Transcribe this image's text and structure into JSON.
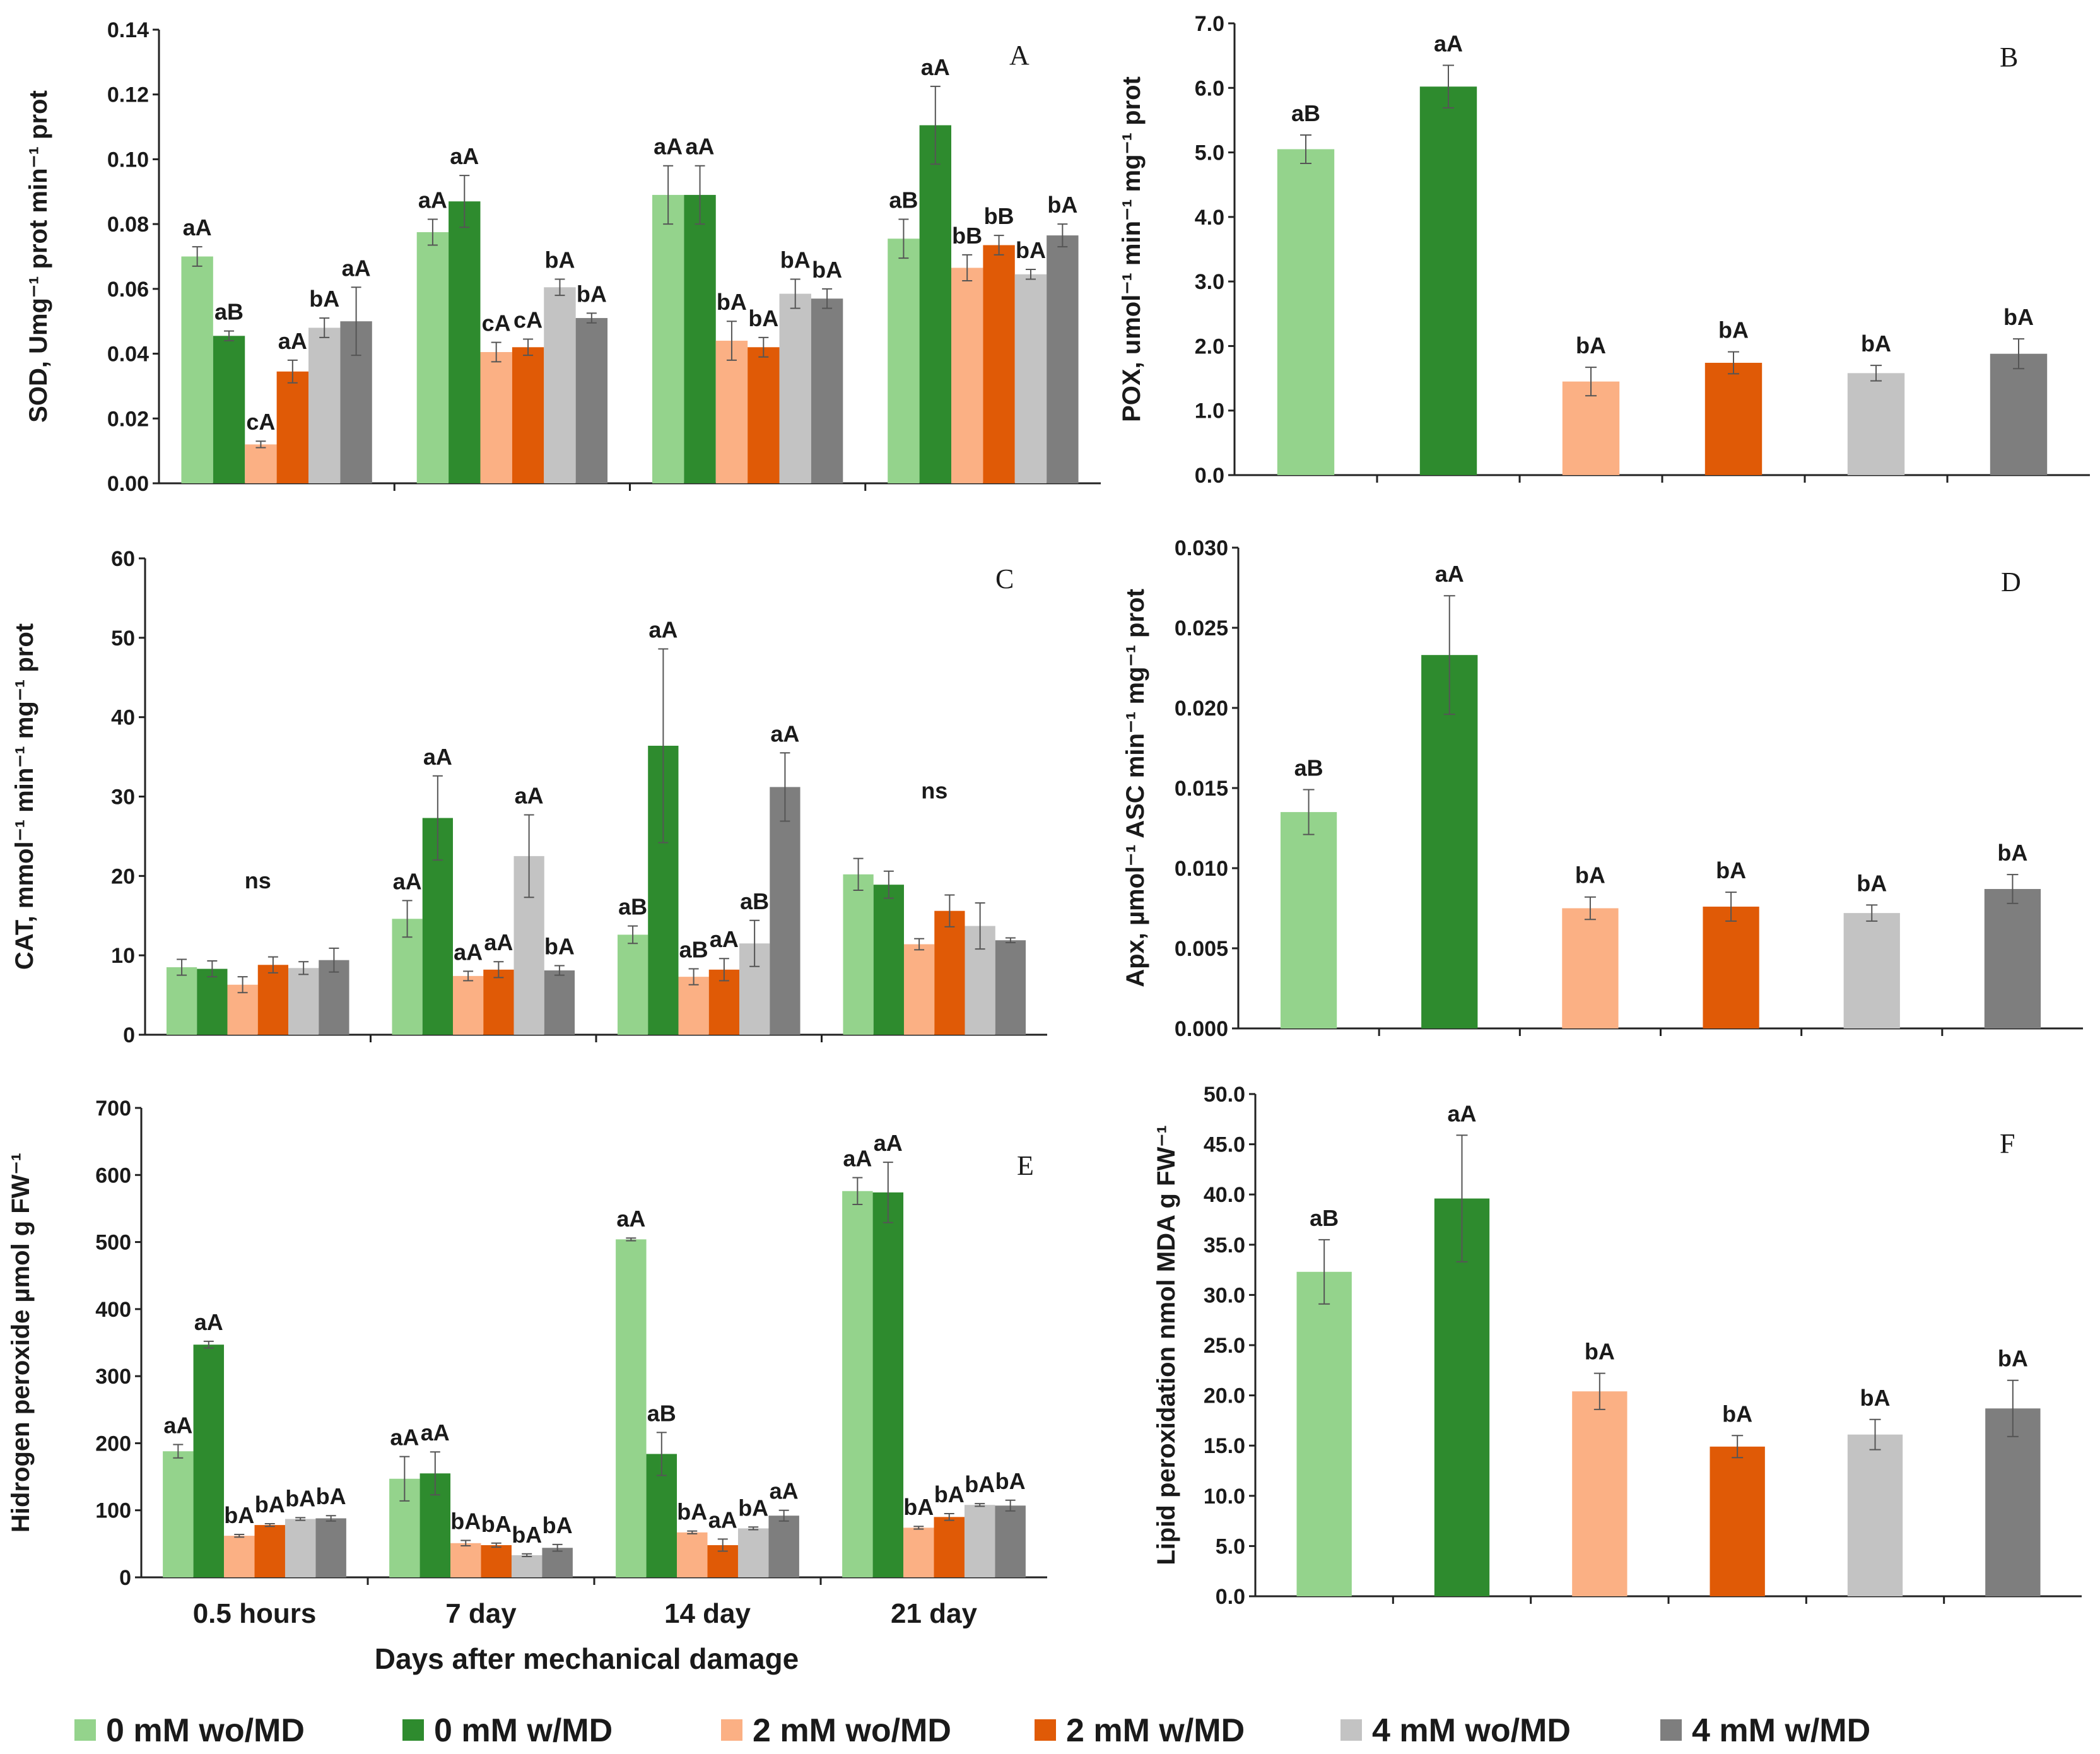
{
  "x_axis_title": "Days after mechanical damage",
  "legend": [
    {
      "label": "0 mM wo/MD",
      "color": "#94d38c"
    },
    {
      "label": "0 mM w/MD",
      "color": "#2e8b2e"
    },
    {
      "label": "2 mM wo/MD",
      "color": "#fbb084"
    },
    {
      "label": "2 mM w/MD",
      "color": "#e05a06"
    },
    {
      "label": "4 mM wo/MD",
      "color": "#c3c3c3"
    },
    {
      "label": "4 mM w/MD",
      "color": "#7e7e7e"
    }
  ],
  "chart_data": [
    {
      "panel": "A",
      "type": "bar",
      "ylabel": "SOD, Umg⁻¹ prot min⁻¹ prot",
      "ylim": [
        0,
        0.14
      ],
      "yticks": [
        "0.00",
        "0.02",
        "0.04",
        "0.06",
        "0.08",
        "0.10",
        "0.12",
        "0.14"
      ],
      "categories": [
        "0.5 hours",
        "7 day",
        "14 day",
        "21 day"
      ],
      "series": [
        {
          "name": "0 mM wo/MD",
          "values": [
            0.07,
            0.0775,
            0.089,
            0.0755
          ],
          "errors": [
            0.003,
            0.004,
            0.009,
            0.006
          ],
          "labels": [
            "aA",
            "aA",
            "aA",
            "aB"
          ]
        },
        {
          "name": "0 mM w/MD",
          "values": [
            0.0455,
            0.087,
            0.089,
            0.1105
          ],
          "errors": [
            0.0015,
            0.008,
            0.009,
            0.012
          ],
          "labels": [
            "aB",
            "aA",
            "aA",
            "aA"
          ]
        },
        {
          "name": "2 mM wo/MD",
          "values": [
            0.012,
            0.0405,
            0.044,
            0.0665
          ],
          "errors": [
            0.001,
            0.003,
            0.006,
            0.004
          ],
          "labels": [
            "cA",
            "cA",
            "bA",
            "bB"
          ]
        },
        {
          "name": "2 mM w/MD",
          "values": [
            0.0345,
            0.042,
            0.042,
            0.0735
          ],
          "errors": [
            0.0035,
            0.0025,
            0.003,
            0.003
          ],
          "labels": [
            "aA",
            "cA",
            "bA",
            "bB"
          ]
        },
        {
          "name": "4 mM wo/MD",
          "values": [
            0.048,
            0.0605,
            0.0585,
            0.0645
          ],
          "errors": [
            0.003,
            0.0025,
            0.0045,
            0.0015
          ],
          "labels": [
            "bA",
            "bA",
            "bA",
            "bA"
          ]
        },
        {
          "name": "4 mM w/MD",
          "values": [
            0.05,
            0.051,
            0.057,
            0.0765
          ],
          "errors": [
            0.0105,
            0.0015,
            0.003,
            0.0035
          ],
          "labels": [
            "aA",
            "bA",
            "bA",
            "bA"
          ]
        }
      ]
    },
    {
      "panel": "B",
      "type": "bar",
      "ylabel": "POX, umol⁻¹ min⁻¹ mg⁻¹ prot",
      "ylim": [
        0,
        7
      ],
      "yticks": [
        "0.0",
        "1.0",
        "2.0",
        "3.0",
        "4.0",
        "5.0",
        "6.0",
        "7.0"
      ],
      "series": [
        {
          "name": "0 mM wo/MD",
          "value": 5.05,
          "error": 0.22,
          "label": "aB"
        },
        {
          "name": "0 mM w/MD",
          "value": 6.02,
          "error": 0.33,
          "label": "aA"
        },
        {
          "name": "2 mM wo/MD",
          "value": 1.45,
          "error": 0.22,
          "label": "bA"
        },
        {
          "name": "2 mM w/MD",
          "value": 1.74,
          "error": 0.17,
          "label": "bA"
        },
        {
          "name": "4 mM wo/MD",
          "value": 1.58,
          "error": 0.12,
          "label": "bA"
        },
        {
          "name": "4 mM w/MD",
          "value": 1.88,
          "error": 0.23,
          "label": "bA"
        }
      ]
    },
    {
      "panel": "C",
      "type": "bar",
      "ylabel": "CAT, mmol⁻¹ min⁻¹ mg⁻¹ prot",
      "ylim": [
        0,
        60
      ],
      "yticks": [
        "0",
        "10",
        "20",
        "30",
        "40",
        "50",
        "60"
      ],
      "categories": [
        "0.5 hours",
        "7 day",
        "14 day",
        "21 day"
      ],
      "group_labels": [
        "ns",
        "",
        "",
        "ns"
      ],
      "series": [
        {
          "name": "0 mM wo/MD",
          "values": [
            8.5,
            14.6,
            12.6,
            20.2
          ],
          "errors": [
            1.0,
            2.3,
            1.1,
            2.0
          ],
          "labels": [
            "",
            "aA",
            "aB",
            ""
          ]
        },
        {
          "name": "0 mM w/MD",
          "values": [
            8.3,
            27.3,
            36.4,
            18.9
          ],
          "errors": [
            1.0,
            5.3,
            12.2,
            1.7
          ],
          "labels": [
            "",
            "aA",
            "aA",
            ""
          ]
        },
        {
          "name": "2 mM wo/MD",
          "values": [
            6.3,
            7.4,
            7.3,
            11.4
          ],
          "errors": [
            1.0,
            0.6,
            1.0,
            0.7
          ],
          "labels": [
            "",
            "aA",
            "aB",
            ""
          ]
        },
        {
          "name": "2 mM w/MD",
          "values": [
            8.8,
            8.2,
            8.2,
            15.6
          ],
          "errors": [
            1.0,
            1.0,
            1.4,
            2.0
          ],
          "labels": [
            "",
            "aA",
            "aA",
            ""
          ]
        },
        {
          "name": "4 mM wo/MD",
          "values": [
            8.4,
            22.5,
            11.5,
            13.7
          ],
          "errors": [
            0.8,
            5.2,
            2.9,
            2.9
          ],
          "labels": [
            "",
            "aA",
            "aB",
            ""
          ]
        },
        {
          "name": "4 mM w/MD",
          "values": [
            9.4,
            8.1,
            31.2,
            11.9
          ],
          "errors": [
            1.5,
            0.6,
            4.3,
            0.3
          ],
          "labels": [
            "",
            "bA",
            "aA",
            ""
          ]
        }
      ]
    },
    {
      "panel": "D",
      "type": "bar",
      "ylabel": "Apx, µmol⁻¹ ASC min⁻¹ mg⁻¹ prot",
      "ylim": [
        0,
        0.03
      ],
      "yticks": [
        "0.000",
        "0.005",
        "0.010",
        "0.015",
        "0.020",
        "0.025",
        "0.030"
      ],
      "series": [
        {
          "name": "0 mM wo/MD",
          "value": 0.0135,
          "error": 0.0014,
          "label": "aB"
        },
        {
          "name": "0 mM w/MD",
          "value": 0.0233,
          "error": 0.0037,
          "label": "aA"
        },
        {
          "name": "2 mM wo/MD",
          "value": 0.0075,
          "error": 0.0007,
          "label": "bA"
        },
        {
          "name": "2 mM w/MD",
          "value": 0.0076,
          "error": 0.0009,
          "label": "bA"
        },
        {
          "name": "4 mM wo/MD",
          "value": 0.0072,
          "error": 0.0005,
          "label": "bA"
        },
        {
          "name": "4 mM w/MD",
          "value": 0.0087,
          "error": 0.0009,
          "label": "bA"
        }
      ]
    },
    {
      "panel": "E",
      "type": "bar",
      "ylabel": "Hidrogen peroxide µmol g FW⁻¹",
      "ylim": [
        0,
        700
      ],
      "yticks": [
        "0",
        "100",
        "200",
        "300",
        "400",
        "500",
        "600",
        "700"
      ],
      "categories": [
        "0.5 hours",
        "7 day",
        "14 day",
        "21 day"
      ],
      "series": [
        {
          "name": "0 mM wo/MD",
          "values": [
            188,
            147,
            504,
            576
          ],
          "errors": [
            10,
            33,
            2,
            20
          ],
          "labels": [
            "aA",
            "aA",
            "aA",
            "aA"
          ]
        },
        {
          "name": "0 mM w/MD",
          "values": [
            347,
            155,
            184,
            574
          ],
          "errors": [
            5,
            32,
            32,
            45
          ],
          "labels": [
            "aA",
            "aA",
            "aB",
            "aA"
          ]
        },
        {
          "name": "2 mM wo/MD",
          "values": [
            62,
            51,
            67,
            74
          ],
          "errors": [
            2,
            4,
            2,
            2
          ],
          "labels": [
            "bA",
            "bA",
            "bA",
            "bA"
          ]
        },
        {
          "name": "2 mM w/MD",
          "values": [
            78,
            48,
            48,
            90
          ],
          "errors": [
            2,
            3,
            9,
            5
          ],
          "labels": [
            "bA",
            "bA",
            "aA",
            "bA"
          ]
        },
        {
          "name": "4 mM wo/MD",
          "values": [
            87,
            33,
            73,
            108
          ],
          "errors": [
            2,
            2,
            2,
            2
          ],
          "labels": [
            "bA",
            "bA",
            "bA",
            "bA"
          ]
        },
        {
          "name": "4 mM w/MD",
          "values": [
            88,
            44,
            92,
            107
          ],
          "errors": [
            4,
            5,
            8,
            8
          ],
          "labels": [
            "bA",
            "bA",
            "aA",
            "bA"
          ]
        }
      ]
    },
    {
      "panel": "F",
      "type": "bar",
      "ylabel": "Lipid peroxidation nmol MDA g FW⁻¹",
      "ylim": [
        0,
        50
      ],
      "yticks": [
        "0.0",
        "5.0",
        "10.0",
        "15.0",
        "20.0",
        "25.0",
        "30.0",
        "35.0",
        "40.0",
        "45.0",
        "50.0"
      ],
      "series": [
        {
          "name": "0 mM wo/MD",
          "value": 32.3,
          "error": 3.2,
          "label": "aB"
        },
        {
          "name": "0 mM w/MD",
          "value": 39.6,
          "error": 6.3,
          "label": "aA"
        },
        {
          "name": "2 mM wo/MD",
          "value": 20.4,
          "error": 1.8,
          "label": "bA"
        },
        {
          "name": "2 mM w/MD",
          "value": 14.9,
          "error": 1.1,
          "label": "bA"
        },
        {
          "name": "4 mM wo/MD",
          "value": 16.1,
          "error": 1.5,
          "label": "bA"
        },
        {
          "name": "4 mM w/MD",
          "value": 18.7,
          "error": 2.8,
          "label": "bA"
        }
      ]
    }
  ]
}
